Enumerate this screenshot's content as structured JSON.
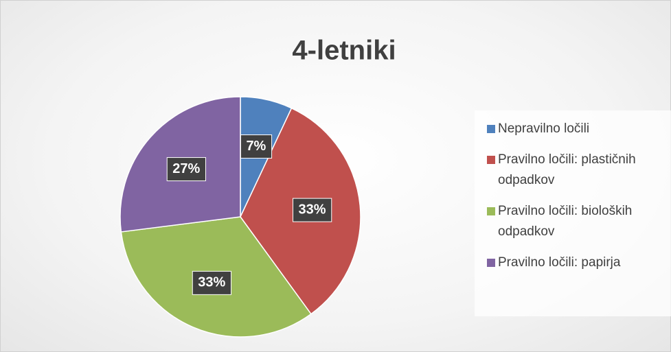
{
  "chart_data": {
    "type": "pie",
    "title": "4-letniki",
    "categories": [
      "Nepravilno ločili",
      "Pravilno ločili: plastičnih odpadkov",
      "Pravilno ločili: bioloških odpadkov",
      "Pravilno ločili: papirja"
    ],
    "values": [
      7,
      33,
      33,
      27
    ],
    "value_labels": [
      "7%",
      "33%",
      "33%",
      "27%"
    ],
    "colors": [
      "#4f81bd",
      "#c0504d",
      "#9bbb59",
      "#8064a2"
    ],
    "legend": "right"
  }
}
